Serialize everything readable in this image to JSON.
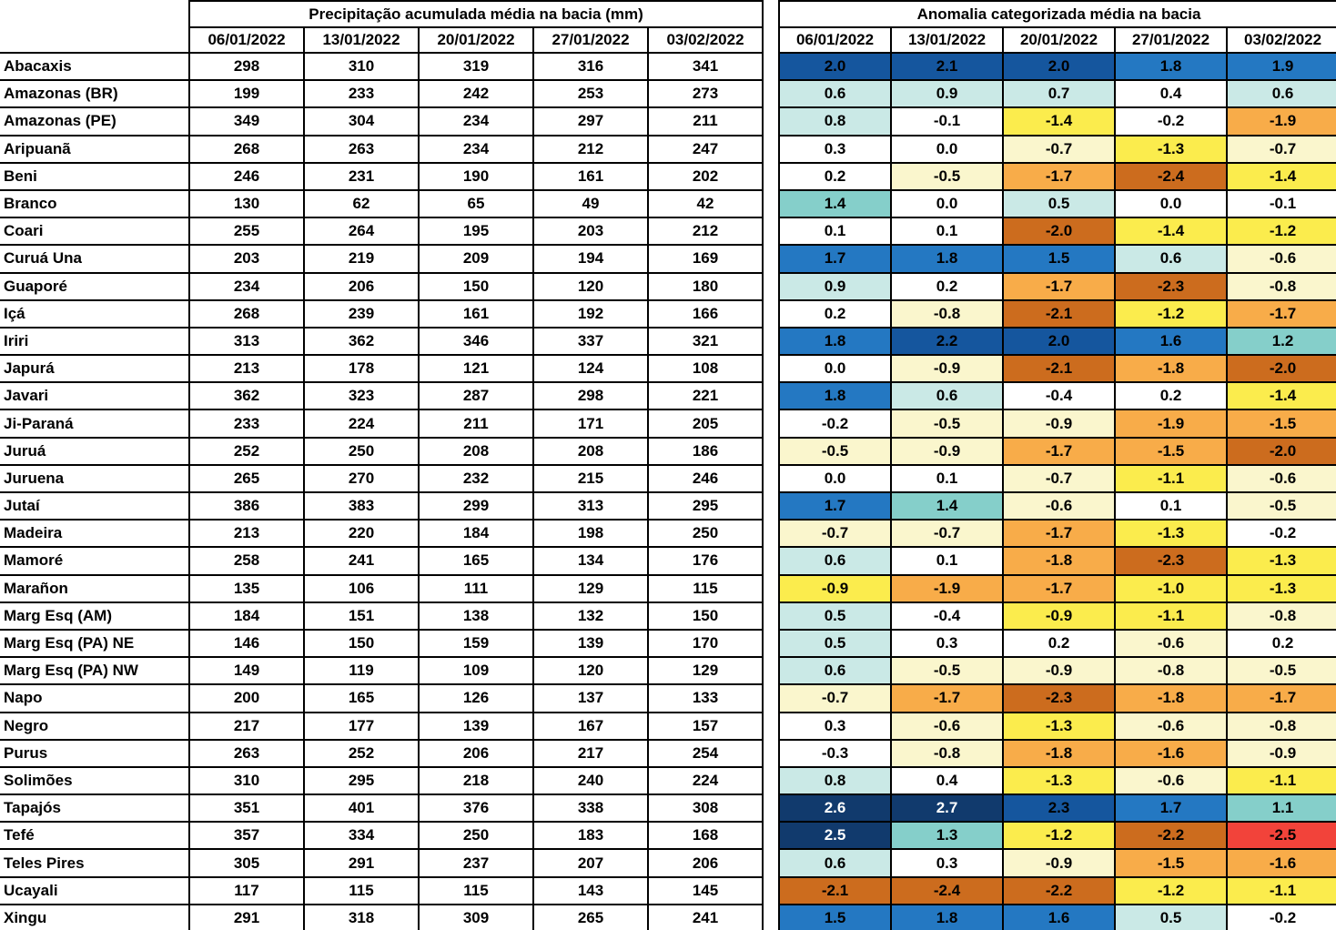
{
  "chart_data": {
    "type": "table",
    "subtype": "heatmap-table",
    "left_title": "Precipitação acumulada média na bacia (mm)",
    "right_title": "Anomalia categorizada média na bacia",
    "columns": [
      "06/01/2022",
      "13/01/2022",
      "20/01/2022",
      "27/01/2022",
      "03/02/2022"
    ],
    "palette": {
      "darkest-blue": "#113A6D",
      "dark-blue": "#15569E",
      "blue": "#2478C2",
      "teal": "#85CFCA",
      "pale-cyan": "#CAE9E6",
      "white": "#FFFFFF",
      "pale-yellow": "#FAF6CD",
      "yellow": "#FBEC4D",
      "orange": "#F8AC49",
      "dark-orange": "#CC6C1E",
      "red": "#F2433A"
    },
    "white_text_category": "darkest-blue",
    "rows": [
      {
        "name": "Abacaxis",
        "precip": [
          298,
          310,
          319,
          316,
          341
        ],
        "anomaly": [
          "2.0",
          "2.1",
          "2.0",
          "1.8",
          "1.9"
        ],
        "cats": [
          "dark-blue",
          "dark-blue",
          "dark-blue",
          "blue",
          "blue"
        ]
      },
      {
        "name": "Amazonas (BR)",
        "precip": [
          199,
          233,
          242,
          253,
          273
        ],
        "anomaly": [
          "0.6",
          "0.9",
          "0.7",
          "0.4",
          "0.6"
        ],
        "cats": [
          "pale-cyan",
          "pale-cyan",
          "pale-cyan",
          "white",
          "pale-cyan"
        ]
      },
      {
        "name": "Amazonas (PE)",
        "precip": [
          349,
          304,
          234,
          297,
          211
        ],
        "anomaly": [
          "0.8",
          "-0.1",
          "-1.4",
          "-0.2",
          "-1.9"
        ],
        "cats": [
          "pale-cyan",
          "white",
          "yellow",
          "white",
          "orange"
        ]
      },
      {
        "name": "Aripuanã",
        "precip": [
          268,
          263,
          234,
          212,
          247
        ],
        "anomaly": [
          "0.3",
          "0.0",
          "-0.7",
          "-1.3",
          "-0.7"
        ],
        "cats": [
          "white",
          "white",
          "pale-yellow",
          "yellow",
          "pale-yellow"
        ]
      },
      {
        "name": "Beni",
        "precip": [
          246,
          231,
          190,
          161,
          202
        ],
        "anomaly": [
          "0.2",
          "-0.5",
          "-1.7",
          "-2.4",
          "-1.4"
        ],
        "cats": [
          "white",
          "pale-yellow",
          "orange",
          "dark-orange",
          "yellow"
        ]
      },
      {
        "name": "Branco",
        "precip": [
          130,
          62,
          65,
          49,
          42
        ],
        "anomaly": [
          "1.4",
          "0.0",
          "0.5",
          "0.0",
          "-0.1"
        ],
        "cats": [
          "teal",
          "white",
          "pale-cyan",
          "white",
          "white"
        ]
      },
      {
        "name": "Coari",
        "precip": [
          255,
          264,
          195,
          203,
          212
        ],
        "anomaly": [
          "0.1",
          "0.1",
          "-2.0",
          "-1.4",
          "-1.2"
        ],
        "cats": [
          "white",
          "white",
          "dark-orange",
          "yellow",
          "yellow"
        ]
      },
      {
        "name": "Curuá Una",
        "precip": [
          203,
          219,
          209,
          194,
          169
        ],
        "anomaly": [
          "1.7",
          "1.8",
          "1.5",
          "0.6",
          "-0.6"
        ],
        "cats": [
          "blue",
          "blue",
          "blue",
          "pale-cyan",
          "pale-yellow"
        ]
      },
      {
        "name": "Guaporé",
        "precip": [
          234,
          206,
          150,
          120,
          180
        ],
        "anomaly": [
          "0.9",
          "0.2",
          "-1.7",
          "-2.3",
          "-0.8"
        ],
        "cats": [
          "pale-cyan",
          "white",
          "orange",
          "dark-orange",
          "pale-yellow"
        ]
      },
      {
        "name": "Içá",
        "precip": [
          268,
          239,
          161,
          192,
          166
        ],
        "anomaly": [
          "0.2",
          "-0.8",
          "-2.1",
          "-1.2",
          "-1.7"
        ],
        "cats": [
          "white",
          "pale-yellow",
          "dark-orange",
          "yellow",
          "orange"
        ]
      },
      {
        "name": "Iriri",
        "precip": [
          313,
          362,
          346,
          337,
          321
        ],
        "anomaly": [
          "1.8",
          "2.2",
          "2.0",
          "1.6",
          "1.2"
        ],
        "cats": [
          "blue",
          "dark-blue",
          "dark-blue",
          "blue",
          "teal"
        ]
      },
      {
        "name": "Japurá",
        "precip": [
          213,
          178,
          121,
          124,
          108
        ],
        "anomaly": [
          "0.0",
          "-0.9",
          "-2.1",
          "-1.8",
          "-2.0"
        ],
        "cats": [
          "white",
          "pale-yellow",
          "dark-orange",
          "orange",
          "dark-orange"
        ]
      },
      {
        "name": "Javari",
        "precip": [
          362,
          323,
          287,
          298,
          221
        ],
        "anomaly": [
          "1.8",
          "0.6",
          "-0.4",
          "0.2",
          "-1.4"
        ],
        "cats": [
          "blue",
          "pale-cyan",
          "white",
          "white",
          "yellow"
        ]
      },
      {
        "name": "Ji-Paraná",
        "precip": [
          233,
          224,
          211,
          171,
          205
        ],
        "anomaly": [
          "-0.2",
          "-0.5",
          "-0.9",
          "-1.9",
          "-1.5"
        ],
        "cats": [
          "white",
          "pale-yellow",
          "pale-yellow",
          "orange",
          "orange"
        ]
      },
      {
        "name": "Juruá",
        "precip": [
          252,
          250,
          208,
          208,
          186
        ],
        "anomaly": [
          "-0.5",
          "-0.9",
          "-1.7",
          "-1.5",
          "-2.0"
        ],
        "cats": [
          "pale-yellow",
          "pale-yellow",
          "orange",
          "orange",
          "dark-orange"
        ]
      },
      {
        "name": "Juruena",
        "precip": [
          265,
          270,
          232,
          215,
          246
        ],
        "anomaly": [
          "0.0",
          "0.1",
          "-0.7",
          "-1.1",
          "-0.6"
        ],
        "cats": [
          "white",
          "white",
          "pale-yellow",
          "yellow",
          "pale-yellow"
        ]
      },
      {
        "name": "Jutaí",
        "precip": [
          386,
          383,
          299,
          313,
          295
        ],
        "anomaly": [
          "1.7",
          "1.4",
          "-0.6",
          "0.1",
          "-0.5"
        ],
        "cats": [
          "blue",
          "teal",
          "pale-yellow",
          "white",
          "pale-yellow"
        ]
      },
      {
        "name": "Madeira",
        "precip": [
          213,
          220,
          184,
          198,
          250
        ],
        "anomaly": [
          "-0.7",
          "-0.7",
          "-1.7",
          "-1.3",
          "-0.2"
        ],
        "cats": [
          "pale-yellow",
          "pale-yellow",
          "orange",
          "yellow",
          "white"
        ]
      },
      {
        "name": "Mamoré",
        "precip": [
          258,
          241,
          165,
          134,
          176
        ],
        "anomaly": [
          "0.6",
          "0.1",
          "-1.8",
          "-2.3",
          "-1.3"
        ],
        "cats": [
          "pale-cyan",
          "white",
          "orange",
          "dark-orange",
          "yellow"
        ]
      },
      {
        "name": "Marañon",
        "precip": [
          135,
          106,
          111,
          129,
          115
        ],
        "anomaly": [
          "-0.9",
          "-1.9",
          "-1.7",
          "-1.0",
          "-1.3"
        ],
        "cats": [
          "yellow",
          "orange",
          "orange",
          "yellow",
          "yellow"
        ]
      },
      {
        "name": "Marg Esq (AM)",
        "precip": [
          184,
          151,
          138,
          132,
          150
        ],
        "anomaly": [
          "0.5",
          "-0.4",
          "-0.9",
          "-1.1",
          "-0.8"
        ],
        "cats": [
          "pale-cyan",
          "white",
          "yellow",
          "yellow",
          "pale-yellow"
        ]
      },
      {
        "name": "Marg Esq (PA) NE",
        "precip": [
          146,
          150,
          159,
          139,
          170
        ],
        "anomaly": [
          "0.5",
          "0.3",
          "0.2",
          "-0.6",
          "0.2"
        ],
        "cats": [
          "pale-cyan",
          "white",
          "white",
          "pale-yellow",
          "white"
        ]
      },
      {
        "name": "Marg Esq (PA) NW",
        "precip": [
          149,
          119,
          109,
          120,
          129
        ],
        "anomaly": [
          "0.6",
          "-0.5",
          "-0.9",
          "-0.8",
          "-0.5"
        ],
        "cats": [
          "pale-cyan",
          "pale-yellow",
          "pale-yellow",
          "pale-yellow",
          "pale-yellow"
        ]
      },
      {
        "name": "Napo",
        "precip": [
          200,
          165,
          126,
          137,
          133
        ],
        "anomaly": [
          "-0.7",
          "-1.7",
          "-2.3",
          "-1.8",
          "-1.7"
        ],
        "cats": [
          "pale-yellow",
          "orange",
          "dark-orange",
          "orange",
          "orange"
        ]
      },
      {
        "name": "Negro",
        "precip": [
          217,
          177,
          139,
          167,
          157
        ],
        "anomaly": [
          "0.3",
          "-0.6",
          "-1.3",
          "-0.6",
          "-0.8"
        ],
        "cats": [
          "white",
          "pale-yellow",
          "yellow",
          "pale-yellow",
          "pale-yellow"
        ]
      },
      {
        "name": "Purus",
        "precip": [
          263,
          252,
          206,
          217,
          254
        ],
        "anomaly": [
          "-0.3",
          "-0.8",
          "-1.8",
          "-1.6",
          "-0.9"
        ],
        "cats": [
          "white",
          "pale-yellow",
          "orange",
          "orange",
          "pale-yellow"
        ]
      },
      {
        "name": "Solimões",
        "precip": [
          310,
          295,
          218,
          240,
          224
        ],
        "anomaly": [
          "0.8",
          "0.4",
          "-1.3",
          "-0.6",
          "-1.1"
        ],
        "cats": [
          "pale-cyan",
          "white",
          "yellow",
          "pale-yellow",
          "yellow"
        ]
      },
      {
        "name": "Tapajós",
        "precip": [
          351,
          401,
          376,
          338,
          308
        ],
        "anomaly": [
          "2.6",
          "2.7",
          "2.3",
          "1.7",
          "1.1"
        ],
        "cats": [
          "darkest-blue",
          "darkest-blue",
          "dark-blue",
          "blue",
          "teal"
        ]
      },
      {
        "name": "Tefé",
        "precip": [
          357,
          334,
          250,
          183,
          168
        ],
        "anomaly": [
          "2.5",
          "1.3",
          "-1.2",
          "-2.2",
          "-2.5"
        ],
        "cats": [
          "darkest-blue",
          "teal",
          "yellow",
          "dark-orange",
          "red"
        ]
      },
      {
        "name": "Teles Pires",
        "precip": [
          305,
          291,
          237,
          207,
          206
        ],
        "anomaly": [
          "0.6",
          "0.3",
          "-0.9",
          "-1.5",
          "-1.6"
        ],
        "cats": [
          "pale-cyan",
          "white",
          "pale-yellow",
          "orange",
          "orange"
        ]
      },
      {
        "name": "Ucayali",
        "precip": [
          117,
          115,
          115,
          143,
          145
        ],
        "anomaly": [
          "-2.1",
          "-2.4",
          "-2.2",
          "-1.2",
          "-1.1"
        ],
        "cats": [
          "dark-orange",
          "dark-orange",
          "dark-orange",
          "yellow",
          "yellow"
        ]
      },
      {
        "name": "Xingu",
        "precip": [
          291,
          318,
          309,
          265,
          241
        ],
        "anomaly": [
          "1.5",
          "1.8",
          "1.6",
          "0.5",
          "-0.2"
        ],
        "cats": [
          "blue",
          "blue",
          "blue",
          "pale-cyan",
          "white"
        ]
      }
    ]
  }
}
